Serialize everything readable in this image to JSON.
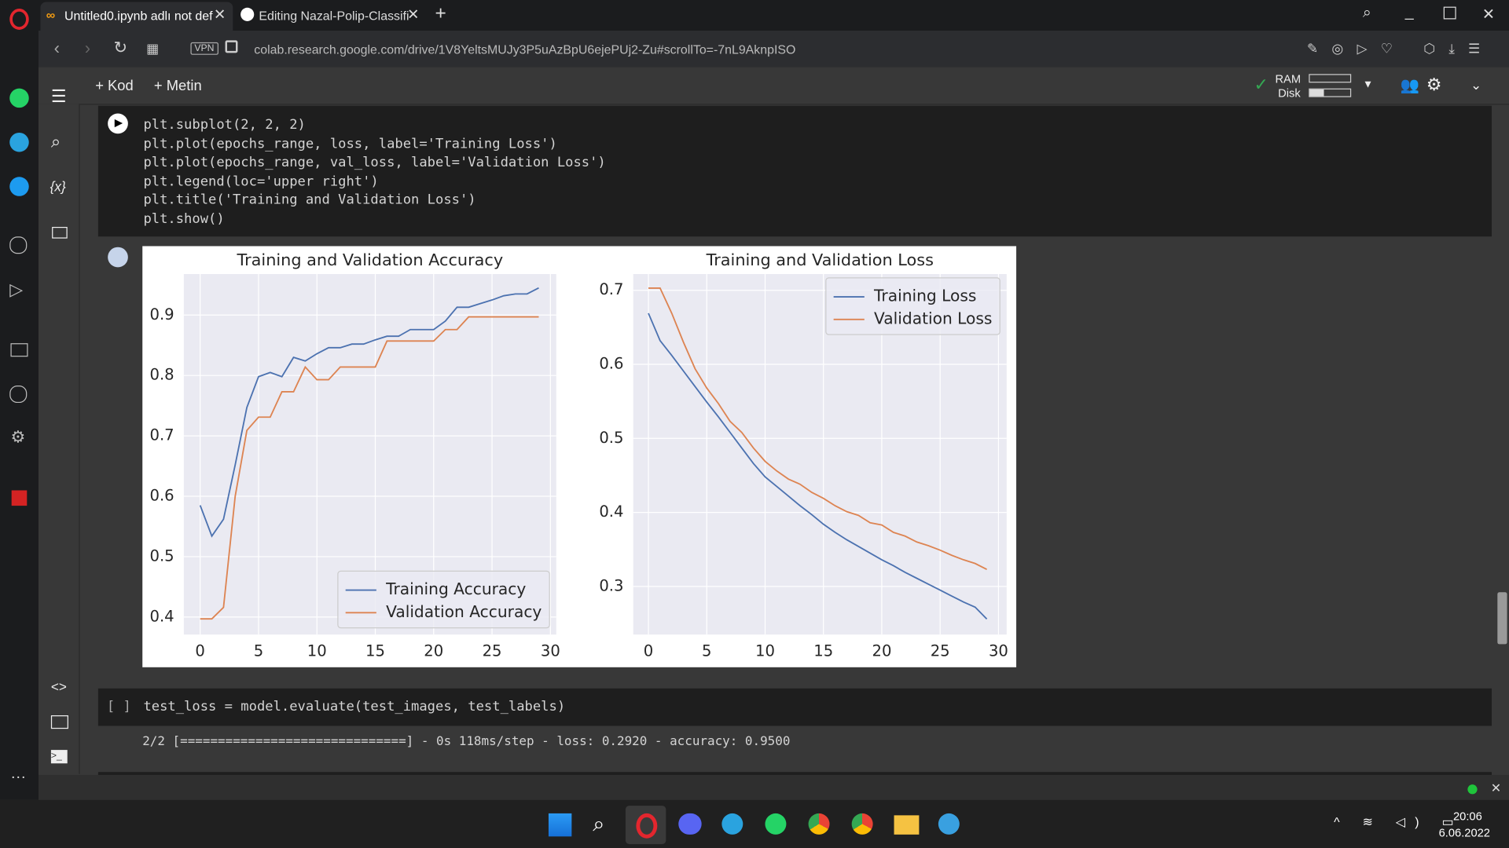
{
  "browser": {
    "tabs": [
      "Untitled0.ipynb adlı not def",
      "Editing Nazal-Polip-Classifi"
    ],
    "vpn": "VPN",
    "url": "colab.research.google.com/drive/1V8YeltsMUJy3P5uAzBpU6ejePUj2-Zu#scrollTo=-7nL9AknpISO"
  },
  "toolbar": {
    "add_code": "+ Kod",
    "add_text": "+ Metin",
    "ram": "RAM",
    "disk": "Disk"
  },
  "cells": [
    {
      "code": [
        "plt.subplot(2, 2, 2)",
        "plt.plot(epochs_range, loss, label='Training Loss')",
        "plt.plot(epochs_range, val_loss, label='Validation Loss')",
        "plt.legend(loc='upper right')",
        "plt.title('Training and Validation Loss')",
        "plt.show()"
      ]
    },
    {
      "prompt": "[ ]",
      "code": [
        "test_loss = model.evaluate(test_images, test_labels)"
      ],
      "output": "2/2 [==============================] - 0s 118ms/step - loss: 0.2920 - accuracy: 0.9500"
    }
  ],
  "chart_data": [
    {
      "type": "line",
      "title": "Training and Validation Accuracy",
      "x": [
        0,
        1,
        2,
        3,
        4,
        5,
        6,
        7,
        8,
        9,
        10,
        11,
        12,
        13,
        14,
        15,
        16,
        17,
        18,
        19,
        20,
        21,
        22,
        23,
        24,
        25,
        26,
        27,
        28,
        29
      ],
      "series": [
        {
          "name": "Training Accuracy",
          "color": "#4c72b0",
          "values": [
            0.585,
            0.534,
            0.562,
            0.652,
            0.747,
            0.798,
            0.805,
            0.798,
            0.83,
            0.824,
            0.836,
            0.846,
            0.846,
            0.852,
            0.852,
            0.859,
            0.865,
            0.865,
            0.876,
            0.876,
            0.876,
            0.89,
            0.913,
            0.913,
            0.919,
            0.925,
            0.932,
            0.935,
            0.935,
            0.945
          ]
        },
        {
          "name": "Validation Accuracy",
          "color": "#dd8452",
          "values": [
            0.397,
            0.397,
            0.416,
            0.6,
            0.709,
            0.731,
            0.731,
            0.773,
            0.773,
            0.814,
            0.793,
            0.793,
            0.814,
            0.814,
            0.814,
            0.814,
            0.857,
            0.857,
            0.857,
            0.857,
            0.857,
            0.876,
            0.876,
            0.897,
            0.897,
            0.897,
            0.897,
            0.897,
            0.897,
            0.897
          ]
        }
      ],
      "xlim": [
        -1.4,
        30.5
      ],
      "ylim": [
        0.371,
        0.968
      ],
      "xticks": [
        0,
        5,
        10,
        15,
        20,
        25,
        30
      ],
      "yticks": [
        0.4,
        0.5,
        0.6,
        0.7,
        0.8,
        0.9
      ],
      "grid": true,
      "legend": "lower right"
    },
    {
      "type": "line",
      "title": "Training and Validation Loss",
      "x": [
        0,
        1,
        2,
        3,
        4,
        5,
        6,
        7,
        8,
        9,
        10,
        11,
        12,
        13,
        14,
        15,
        16,
        17,
        18,
        19,
        20,
        21,
        22,
        23,
        24,
        25,
        26,
        27,
        28,
        29
      ],
      "series": [
        {
          "name": "Training Loss",
          "color": "#4c72b0",
          "values": [
            0.669,
            0.632,
            0.612,
            0.591,
            0.57,
            0.549,
            0.529,
            0.508,
            0.487,
            0.466,
            0.448,
            0.435,
            0.422,
            0.409,
            0.397,
            0.384,
            0.373,
            0.363,
            0.354,
            0.345,
            0.336,
            0.328,
            0.319,
            0.311,
            0.303,
            0.295,
            0.287,
            0.279,
            0.272,
            0.256
          ]
        },
        {
          "name": "Validation Loss",
          "color": "#dd8452",
          "values": [
            0.703,
            0.703,
            0.669,
            0.63,
            0.594,
            0.568,
            0.547,
            0.523,
            0.508,
            0.487,
            0.469,
            0.456,
            0.445,
            0.438,
            0.427,
            0.419,
            0.409,
            0.401,
            0.396,
            0.386,
            0.383,
            0.373,
            0.368,
            0.36,
            0.355,
            0.349,
            0.342,
            0.336,
            0.331,
            0.323
          ]
        }
      ],
      "xlim": [
        -1.3,
        30.7
      ],
      "ylim": [
        0.235,
        0.722
      ],
      "xticks": [
        0,
        5,
        10,
        15,
        20,
        25,
        30
      ],
      "yticks": [
        0.3,
        0.4,
        0.5,
        0.6,
        0.7
      ],
      "grid": true,
      "legend": "upper right"
    }
  ],
  "taskbar": {
    "time": "20:06",
    "date": "6.06.2022"
  }
}
